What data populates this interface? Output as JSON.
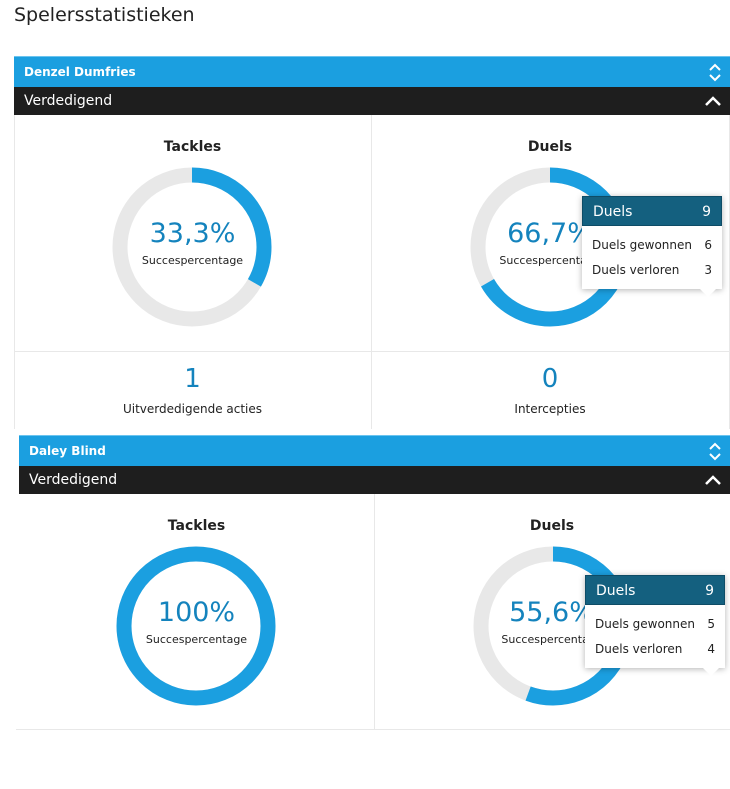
{
  "page": {
    "title": "Spelersstatistieken"
  },
  "colors": {
    "accent": "#1b9fe0",
    "value_text": "#1483bd",
    "track": "#e8e8e8",
    "tooltip_header": "#14607f"
  },
  "players": [
    {
      "name": "Denzel Dumfries",
      "section": "Verdedigend",
      "tackles": {
        "title": "Tackles",
        "value": "33,3%",
        "caption": "Succespercentage",
        "fraction": 0.333
      },
      "duels": {
        "title": "Duels",
        "value": "66,7%",
        "caption": "Succespercentage",
        "fraction": 0.667,
        "tooltip": {
          "title": "Duels",
          "total": "9",
          "won_label": "Duels gewonnen",
          "won": "6",
          "lost_label": "Duels verloren",
          "lost": "3"
        }
      },
      "clearances": {
        "value": "1",
        "label": "Uitverdedigende acties"
      },
      "interceptions": {
        "value": "0",
        "label": "Intercepties"
      }
    },
    {
      "name": "Daley Blind",
      "section": "Verdedigend",
      "tackles": {
        "title": "Tackles",
        "value": "100%",
        "caption": "Succespercentage",
        "fraction": 1.0
      },
      "duels": {
        "title": "Duels",
        "value": "55,6%",
        "caption": "Succespercentage",
        "fraction": 0.556,
        "tooltip": {
          "title": "Duels",
          "total": "9",
          "won_label": "Duels gewonnen",
          "won": "5",
          "lost_label": "Duels verloren",
          "lost": "4"
        }
      }
    }
  ]
}
